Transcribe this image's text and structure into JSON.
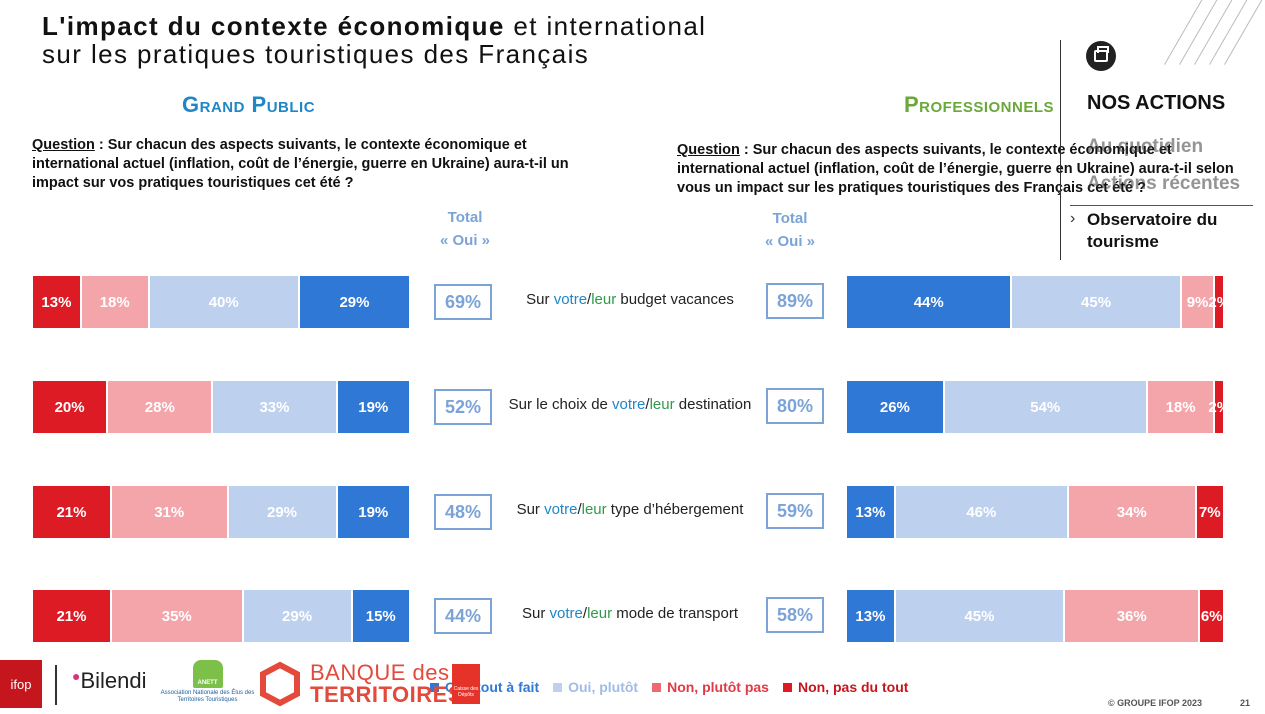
{
  "title": {
    "bold": "L'impact du contexte économique",
    "rest": " et international",
    "line2": "sur les pratiques touristiques des Français"
  },
  "gp_heading": "Grand Public",
  "pro_heading": "Professionnels",
  "question_gp": {
    "label": "Question",
    "text": " : Sur chacun des aspects suivants, le contexte économique et international actuel (inflation, coût de l’énergie, guerre en Ukraine) aura-t-il un impact sur vos pratiques touristiques cet été ?"
  },
  "question_pro": {
    "label": "Question",
    "text": " : Sur chacun des aspects suivants, le contexte économique et international actuel (inflation, coût de l’énergie, guerre en Ukraine) aura-t-il selon vous un impact sur les pratiques touristiques des Français cet été ?"
  },
  "total_header": {
    "line1": "Total",
    "line2": "« Oui »"
  },
  "chart_data": {
    "type": "bar",
    "orientation": "horizontal-stacked-100",
    "series_names": [
      "Oui, tout à fait",
      "Oui, plutôt",
      "Non, plutôt pas",
      "Non, pas du tout"
    ],
    "colors": {
      "Oui, tout à fait": "#2f78d6",
      "Oui, plutôt": "#bdd1ef",
      "Non, plutôt pas": "#f4a5aa",
      "Non, pas du tout": "#dc1b24"
    },
    "rows": [
      {
        "label": {
          "pre": "Sur ",
          "votre": "votre",
          "slash": "/",
          "leur": "leur",
          "post": " budget vacances"
        },
        "grand_public": {
          "non_pas": 13,
          "non_plutot": 18,
          "oui_plutot": 40,
          "oui_fait": 29,
          "total_oui": "69%"
        },
        "professionnels": {
          "oui_fait": 44,
          "oui_plutot": 45,
          "non_plutot": 9,
          "non_pas": 2,
          "total_oui": "89%"
        }
      },
      {
        "label": {
          "pre": "Sur le choix de ",
          "votre": "votre",
          "slash": "/",
          "leur": "leur",
          "post": " destination"
        },
        "grand_public": {
          "non_pas": 20,
          "non_plutot": 28,
          "oui_plutot": 33,
          "oui_fait": 19,
          "total_oui": "52%"
        },
        "professionnels": {
          "oui_fait": 26,
          "oui_plutot": 54,
          "non_plutot": 18,
          "non_pas": 2,
          "total_oui": "80%"
        }
      },
      {
        "label": {
          "pre": "Sur ",
          "votre": "votre",
          "slash": "/",
          "leur": "leur",
          "post": " type d’hébergement"
        },
        "grand_public": {
          "non_pas": 21,
          "non_plutot": 31,
          "oui_plutot": 29,
          "oui_fait": 19,
          "total_oui": "48%"
        },
        "professionnels": {
          "oui_fait": 13,
          "oui_plutot": 46,
          "non_plutot": 34,
          "non_pas": 7,
          "total_oui": "59%"
        }
      },
      {
        "label": {
          "pre": "Sur ",
          "votre": "votre",
          "slash": "/",
          "leur": "leur",
          "post": " mode de transport"
        },
        "grand_public": {
          "non_pas": 21,
          "non_plutot": 35,
          "oui_plutot": 29,
          "oui_fait": 15,
          "total_oui": "44%"
        },
        "professionnels": {
          "oui_fait": 13,
          "oui_plutot": 45,
          "non_plutot": 36,
          "non_pas": 6,
          "total_oui": "58%"
        }
      }
    ]
  },
  "legend": {
    "oui_fait": "Oui, tout à fait",
    "oui_plutot": "Oui, plutôt",
    "non_plutot": "Non, plutôt pas",
    "non_pas": "Non, pas du tout"
  },
  "nav": {
    "title": "NOS ACTIONS",
    "item1": "Au quotidien",
    "item2": "Actions récentes",
    "item3_line1": "Observatoire du",
    "item3_line2": "tourisme"
  },
  "logos": {
    "ifop": "ifop",
    "bilendi": "Bilendi",
    "anett_badge": "ANETT",
    "anett_text": "Association Nationale des Élus des Territoires Touristiques",
    "banque_line1": "BANQUE des",
    "banque_line2": "TERRITOIRES",
    "caisse": "Caisse des Dépôts"
  },
  "footer": {
    "copyright": "© GROUPE IFOP 2023",
    "page": "21"
  }
}
